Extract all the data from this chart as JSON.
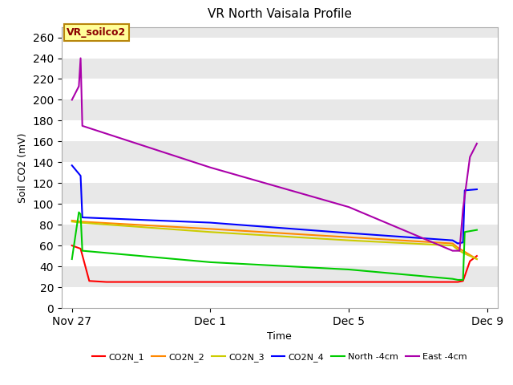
{
  "title": "VR North Vaisala Profile",
  "xlabel": "Time",
  "ylabel": "Soil CO2 (mV)",
  "ylim": [
    0,
    270
  ],
  "yticks": [
    0,
    20,
    40,
    60,
    80,
    100,
    120,
    140,
    160,
    180,
    200,
    220,
    240,
    260
  ],
  "plot_bg_color": "#e8e8e8",
  "annotation_text": "VR_soilco2",
  "annotation_bg": "#ffff99",
  "annotation_border": "#b8860b",
  "xtick_positions": [
    0,
    4,
    8,
    12
  ],
  "xtick_labels": [
    "Nov 27",
    "Dec 1",
    "Dec 5",
    "Dec 9"
  ],
  "legend_labels": [
    "CO2N_1",
    "CO2N_2",
    "CO2N_3",
    "CO2N_4",
    "North -4cm",
    "East -4cm"
  ],
  "legend_colors": [
    "#ff0000",
    "#ff8800",
    "#cccc00",
    "#0000ff",
    "#00cc00",
    "#aa00aa"
  ],
  "CO2N_1_x": [
    0,
    0.25,
    0.5,
    1,
    2,
    3,
    4,
    5,
    6,
    7,
    8,
    9,
    10,
    11,
    11.15,
    11.3,
    11.5,
    11.7
  ],
  "CO2N_1_y": [
    60,
    57,
    26,
    25,
    25,
    25,
    25,
    25,
    25,
    25,
    25,
    25,
    25,
    25,
    25,
    26,
    45,
    50
  ],
  "CO2N_2_x": [
    0,
    0.25,
    4,
    8,
    11,
    11.15,
    11.3,
    11.7
  ],
  "CO2N_2_y": [
    84,
    83,
    76,
    68,
    62,
    58,
    55,
    47
  ],
  "CO2N_3_x": [
    0,
    0.25,
    4,
    8,
    11,
    11.15,
    11.3,
    11.7
  ],
  "CO2N_3_y": [
    83,
    82,
    73,
    65,
    60,
    56,
    53,
    47
  ],
  "CO2N_4_x": [
    0,
    0.25,
    0.3,
    4,
    8,
    11,
    11.15,
    11.3,
    11.35,
    11.7
  ],
  "CO2N_4_y": [
    137,
    127,
    87,
    82,
    72,
    65,
    62,
    63,
    113,
    114
  ],
  "North_4cm_x": [
    0,
    0.2,
    0.25,
    0.3,
    4,
    8,
    11,
    11.15,
    11.3,
    11.35,
    11.7
  ],
  "North_4cm_y": [
    47,
    92,
    90,
    55,
    44,
    37,
    28,
    27,
    27,
    73,
    75
  ],
  "East_4cm_x": [
    0,
    0.2,
    0.25,
    0.27,
    0.3,
    4,
    8,
    11,
    11.2,
    11.3,
    11.5,
    11.7
  ],
  "East_4cm_y": [
    200,
    213,
    240,
    215,
    175,
    135,
    97,
    55,
    55,
    95,
    145,
    158
  ]
}
